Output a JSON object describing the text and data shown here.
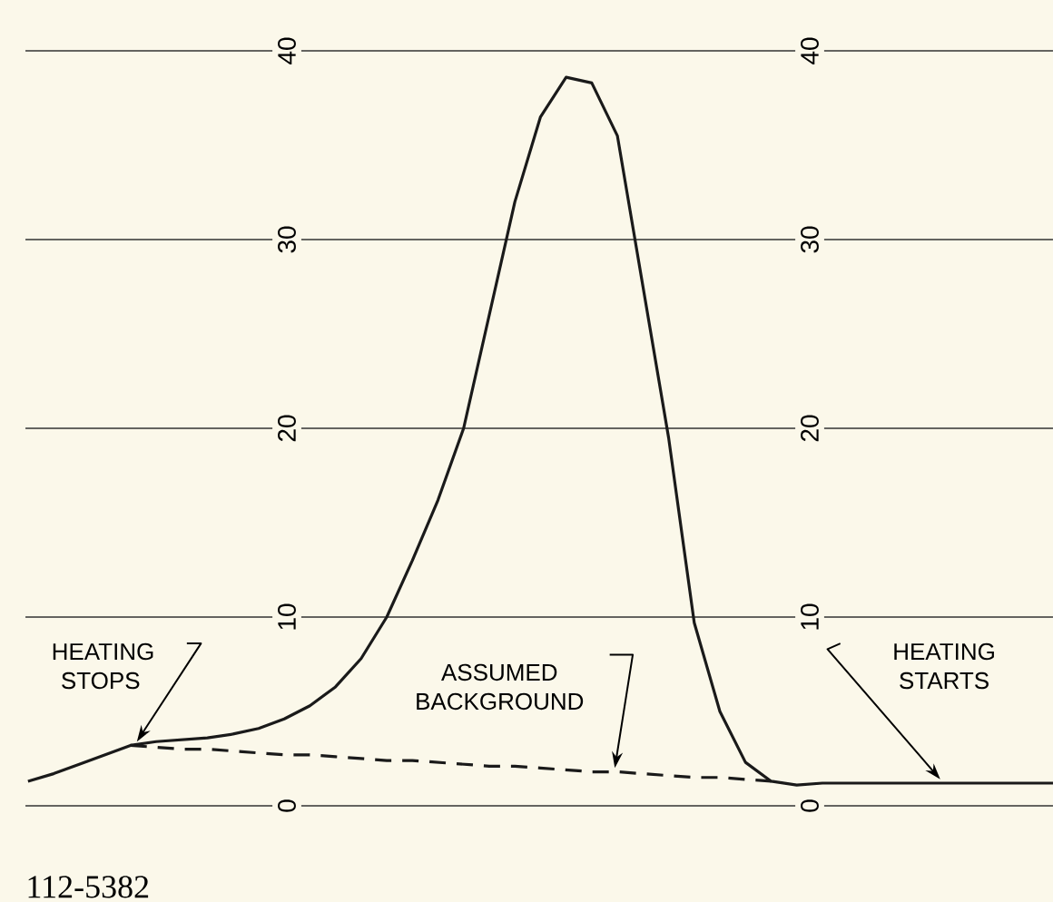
{
  "chart_data": {
    "type": "line",
    "categories": [
      null,
      null,
      null,
      null,
      null,
      null,
      null,
      null,
      null,
      null,
      null,
      null,
      null,
      null,
      null,
      null,
      null,
      null,
      null,
      null,
      null,
      null,
      null,
      null,
      null,
      null,
      null,
      null,
      null,
      null,
      null,
      null,
      null,
      null,
      null,
      null,
      null,
      null,
      null,
      null,
      null
    ],
    "series": [
      {
        "color": "#1a1a1a",
        "line_style": "solid",
        "values": [
          1.3,
          1.7,
          2.2,
          2.7,
          3.2,
          3.4,
          3.5,
          3.6,
          3.8,
          4.1,
          4.6,
          5.3,
          6.3,
          7.8,
          10.0,
          13.0,
          16.2,
          20.0,
          26.0,
          32.0,
          36.5,
          38.6,
          38.3,
          35.5,
          27.5,
          19.5,
          9.7,
          5.0,
          2.3,
          1.3,
          1.1,
          1.2,
          1.2,
          1.2,
          1.2,
          1.2,
          1.2,
          1.2,
          1.2,
          1.2,
          1.2
        ]
      },
      {
        "color": "#1a1a1a",
        "line_style": "dashed",
        "values": [
          null,
          null,
          null,
          null,
          3.2,
          3.1,
          3.0,
          3.0,
          2.9,
          2.8,
          2.7,
          2.7,
          2.6,
          2.5,
          2.4,
          2.4,
          2.3,
          2.2,
          2.1,
          2.1,
          2.0,
          1.9,
          1.8,
          1.8,
          1.7,
          1.6,
          1.5,
          1.5,
          1.4,
          1.3,
          null,
          null,
          null,
          null,
          null,
          null,
          null,
          null,
          null,
          null,
          null
        ]
      }
    ],
    "ylim": [
      0,
      40
    ],
    "yticks": [
      0,
      10,
      20,
      30,
      40
    ],
    "y2lim": [
      0,
      40
    ],
    "y2ticks": [
      0,
      10,
      20,
      30,
      40
    ],
    "grid": "y",
    "marker": "none",
    "annotations": [
      "HEATING STOPS",
      "ASSUMED BACKGROUND",
      "HEATING STARTS",
      "112-5382"
    ]
  }
}
